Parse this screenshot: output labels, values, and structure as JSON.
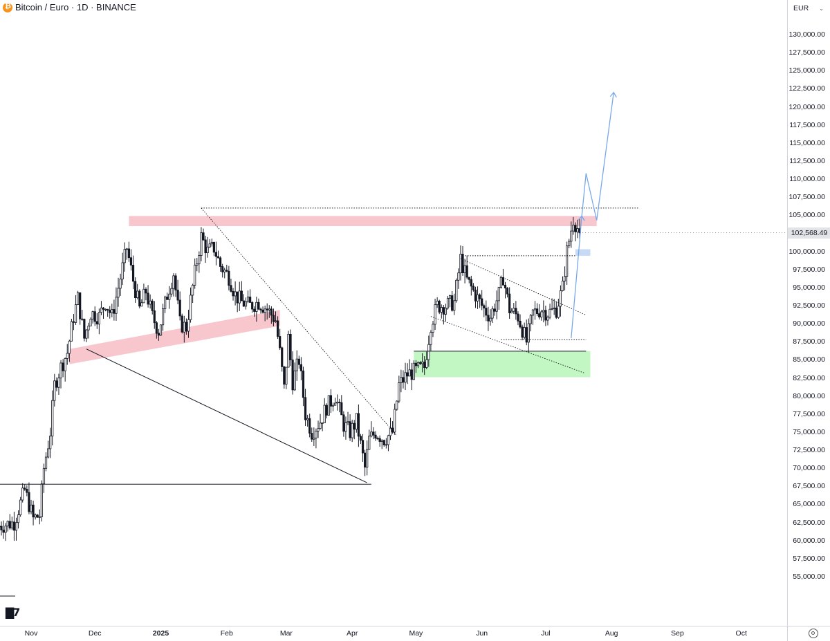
{
  "header": {
    "title": "Bitcoin / Euro · 1D · BINANCE"
  },
  "axis": {
    "currency": "EUR",
    "last_price": "102,568.49"
  },
  "logo_text": "17",
  "colors": {
    "bull": "#ffffff",
    "bear": "#131722",
    "resistance_zone": "#f6b9c1",
    "support_zone": "#b7f5b7",
    "projection": "#7aa7e8",
    "price_tag_bg": "#e3e4e8"
  },
  "chart_data": {
    "type": "candlestick",
    "title": "Bitcoin / Euro · 1D · BINANCE",
    "ylim": [
      54000,
      132500
    ],
    "y_ticks": [
      "130,000.00",
      "127,500.00",
      "125,000.00",
      "122,500.00",
      "120,000.00",
      "117,500.00",
      "115,000.00",
      "112,500.00",
      "110,000.00",
      "107,500.00",
      "105,000.00",
      "102,500.00",
      "100,000.00",
      "97,500.00",
      "95,000.00",
      "92,500.00",
      "90,000.00",
      "87,500.00",
      "85,000.00",
      "82,500.00",
      "80,000.00",
      "77,500.00",
      "75,000.00",
      "72,500.00",
      "70,000.00",
      "67,500.00",
      "65,000.00",
      "62,500.00",
      "60,000.00",
      "57,500.00",
      "55,000.00"
    ],
    "x_ticks": [
      {
        "label": "Nov",
        "date": "2024-11-01"
      },
      {
        "label": "Dec",
        "date": "2024-12-01"
      },
      {
        "label": "2025",
        "date": "2025-01-01",
        "bold": true
      },
      {
        "label": "Feb",
        "date": "2025-02-01"
      },
      {
        "label": "Mar",
        "date": "2025-03-01"
      },
      {
        "label": "Apr",
        "date": "2025-04-01"
      },
      {
        "label": "May",
        "date": "2025-05-01"
      },
      {
        "label": "Jun",
        "date": "2025-06-01"
      },
      {
        "label": "Jul",
        "date": "2025-07-01"
      },
      {
        "label": "Aug",
        "date": "2025-08-01"
      },
      {
        "label": "Sep",
        "date": "2025-09-01"
      },
      {
        "label": "Oct",
        "date": "2025-10-01"
      }
    ],
    "price_path": [
      [
        "2024-10-17",
        62000
      ],
      [
        "2024-10-24",
        62500
      ],
      [
        "2024-10-29",
        67000
      ],
      [
        "2024-11-02",
        63000
      ],
      [
        "2024-11-05",
        63500
      ],
      [
        "2024-11-07",
        70000
      ],
      [
        "2024-11-10",
        75000
      ],
      [
        "2024-11-12",
        81500
      ],
      [
        "2024-11-15",
        84000
      ],
      [
        "2024-11-18",
        86000
      ],
      [
        "2024-11-21",
        91000
      ],
      [
        "2024-11-23",
        93500
      ],
      [
        "2024-11-26",
        88000
      ],
      [
        "2024-11-29",
        91500
      ],
      [
        "2024-12-03",
        91000
      ],
      [
        "2024-12-06",
        93000
      ],
      [
        "2024-12-09",
        91000
      ],
      [
        "2024-12-12",
        95000
      ],
      [
        "2024-12-16",
        100500
      ],
      [
        "2024-12-19",
        96000
      ],
      [
        "2024-12-22",
        92000
      ],
      [
        "2024-12-25",
        94500
      ],
      [
        "2024-12-28",
        91000
      ],
      [
        "2024-12-31",
        89000
      ],
      [
        "2025-01-04",
        94000
      ],
      [
        "2025-01-07",
        97000
      ],
      [
        "2025-01-10",
        90000
      ],
      [
        "2025-01-13",
        89500
      ],
      [
        "2025-01-17",
        97000
      ],
      [
        "2025-01-20",
        102000
      ],
      [
        "2025-01-23",
        100000
      ],
      [
        "2025-01-26",
        100500
      ],
      [
        "2025-01-29",
        98000
      ],
      [
        "2025-02-02",
        96500
      ],
      [
        "2025-02-05",
        94000
      ],
      [
        "2025-02-08",
        93000
      ],
      [
        "2025-02-12",
        92500
      ],
      [
        "2025-02-16",
        93000
      ],
      [
        "2025-02-20",
        92000
      ],
      [
        "2025-02-24",
        90500
      ],
      [
        "2025-02-26",
        86000
      ],
      [
        "2025-02-28",
        81000
      ],
      [
        "2025-03-02",
        88000
      ],
      [
        "2025-03-04",
        82000
      ],
      [
        "2025-03-07",
        85000
      ],
      [
        "2025-03-10",
        77500
      ],
      [
        "2025-03-13",
        75000
      ],
      [
        "2025-03-17",
        76500
      ],
      [
        "2025-03-20",
        78500
      ],
      [
        "2025-03-24",
        80000
      ],
      [
        "2025-03-28",
        76000
      ],
      [
        "2025-03-31",
        75000
      ],
      [
        "2025-04-03",
        76500
      ],
      [
        "2025-04-07",
        70000
      ],
      [
        "2025-04-09",
        74000
      ],
      [
        "2025-04-12",
        75000
      ],
      [
        "2025-04-16",
        74000
      ],
      [
        "2025-04-20",
        75000
      ],
      [
        "2025-04-23",
        81500
      ],
      [
        "2025-04-27",
        83000
      ],
      [
        "2025-05-01",
        83500
      ],
      [
        "2025-05-05",
        84000
      ],
      [
        "2025-05-08",
        90000
      ],
      [
        "2025-05-11",
        92500
      ],
      [
        "2025-05-15",
        92500
      ],
      [
        "2025-05-19",
        93000
      ],
      [
        "2025-05-22",
        99000
      ],
      [
        "2025-05-25",
        96000
      ],
      [
        "2025-05-29",
        94000
      ],
      [
        "2025-06-02",
        92000
      ],
      [
        "2025-06-05",
        91000
      ],
      [
        "2025-06-09",
        94000
      ],
      [
        "2025-06-11",
        96500
      ],
      [
        "2025-06-14",
        92000
      ],
      [
        "2025-06-18",
        91000
      ],
      [
        "2025-06-22",
        87500
      ],
      [
        "2025-06-25",
        91500
      ],
      [
        "2025-06-29",
        92000
      ],
      [
        "2025-07-02",
        91500
      ],
      [
        "2025-07-06",
        92000
      ],
      [
        "2025-07-09",
        95000
      ],
      [
        "2025-07-11",
        100000
      ],
      [
        "2025-07-14",
        104500
      ],
      [
        "2025-07-17",
        102568
      ]
    ],
    "zones": [
      {
        "kind": "resistance",
        "date_from": "2024-12-17",
        "date_to": "2025-07-25",
        "y_from": 103500,
        "y_to": 104900
      },
      {
        "kind": "support",
        "date_from": "2025-04-30",
        "date_to": "2025-07-22",
        "y_from": 82600,
        "y_to": 86200
      },
      {
        "kind": "target",
        "date_from": "2025-07-15",
        "date_to": "2025-07-22",
        "y_from": 99400,
        "y_to": 100300
      }
    ],
    "lines": [
      {
        "style": "solid",
        "from": [
          "2024-10-17",
          67800
        ],
        "to": [
          "2025-04-10",
          67800
        ]
      },
      {
        "style": "solid",
        "from": [
          "2024-11-27",
          86500
        ],
        "to": [
          "2025-04-08",
          68000
        ]
      },
      {
        "style": "dotted",
        "from": [
          "2025-01-20",
          106000
        ],
        "to": [
          "2025-04-22",
          74500
        ]
      },
      {
        "style": "dotted",
        "from": [
          "2025-01-20",
          106000
        ],
        "to": [
          "2025-08-14",
          106000
        ]
      },
      {
        "style": "dotted",
        "from": [
          "2025-05-23",
          99400
        ],
        "to": [
          "2025-07-15",
          99400
        ]
      },
      {
        "style": "dotted",
        "from": [
          "2025-05-22",
          99000
        ],
        "to": [
          "2025-07-20",
          91200
        ]
      },
      {
        "style": "dotted",
        "from": [
          "2025-05-08",
          91000
        ],
        "to": [
          "2025-07-19",
          83200
        ]
      },
      {
        "style": "dotted",
        "from": [
          "2025-06-10",
          87800
        ],
        "to": [
          "2025-07-20",
          87800
        ]
      },
      {
        "style": "solid",
        "from": [
          "2025-04-30",
          86200
        ],
        "to": [
          "2025-07-20",
          86200
        ]
      }
    ],
    "projection": [
      [
        "2025-07-13",
        88000
      ],
      [
        "2025-07-18",
        104900
      ],
      [
        "2025-07-20",
        110800
      ],
      [
        "2025-07-25",
        104300
      ],
      [
        "2025-08-02",
        122000
      ]
    ],
    "last_price": 102568.49
  }
}
